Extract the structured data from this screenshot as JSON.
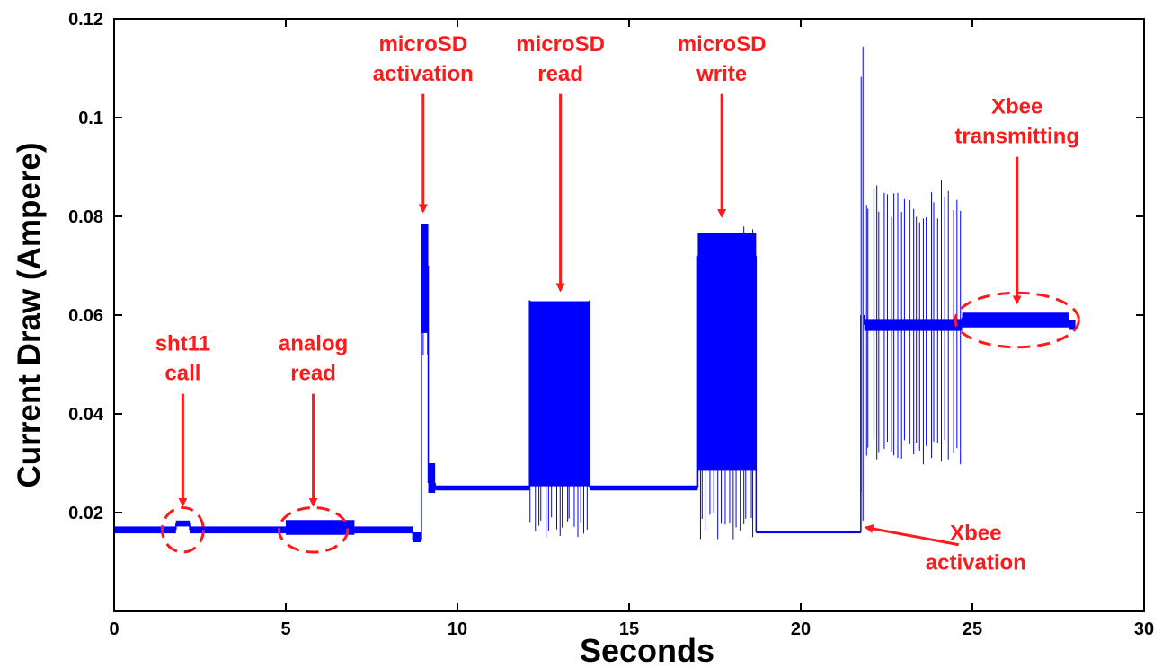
{
  "chart_data": {
    "type": "line",
    "title": "",
    "xlabel": "Seconds",
    "ylabel": "Current Draw (Ampere)",
    "xlim": [
      0,
      30
    ],
    "ylim": [
      0,
      0.12
    ],
    "xticks": [
      0,
      5,
      10,
      15,
      20,
      25,
      30
    ],
    "xtick_labels": [
      "0",
      "5",
      "10",
      "15",
      "20",
      "25",
      "30"
    ],
    "yticks": [
      0.02,
      0.04,
      0.06,
      0.08,
      0.1,
      0.12
    ],
    "ytick_labels": [
      "0.02",
      "0.04",
      "0.06",
      "0.08",
      "0.1",
      "0.12"
    ],
    "grid": false,
    "line_color": "#0000ff",
    "annotation_color": "#ff1a1a",
    "series": [
      {
        "segments": [
          {
            "x0": 0.0,
            "x1": 1.8,
            "base": 0.0165,
            "range": [
              0.0158,
              0.0172
            ]
          },
          {
            "x0": 1.8,
            "x1": 2.2,
            "base": 0.0178,
            "range": [
              0.0172,
              0.0184
            ]
          },
          {
            "x0": 2.2,
            "x1": 5.0,
            "base": 0.0165,
            "range": [
              0.0158,
              0.0172
            ]
          },
          {
            "x0": 5.0,
            "x1": 7.0,
            "base": 0.0168,
            "range": [
              0.0155,
              0.0185
            ]
          },
          {
            "x0": 7.0,
            "x1": 8.7,
            "base": 0.0165,
            "range": [
              0.0158,
              0.0172
            ]
          },
          {
            "x0": 8.7,
            "x1": 8.95,
            "base": 0.0145,
            "range": [
              0.014,
              0.016
            ]
          },
          {
            "x0": 8.95,
            "x1": 9.15,
            "base": 0.07,
            "range": [
              0.05,
              0.079
            ]
          },
          {
            "x0": 9.15,
            "x1": 9.35,
            "base": 0.026,
            "range": [
              0.024,
              0.03
            ]
          },
          {
            "x0": 9.35,
            "x1": 12.1,
            "base": 0.025,
            "range": [
              0.0245,
              0.0255
            ]
          },
          {
            "x0": 12.1,
            "x1": 13.85,
            "base": 0.063,
            "range": [
              0.0145,
              0.0638
            ]
          },
          {
            "x0": 13.85,
            "x1": 17.0,
            "base": 0.025,
            "range": [
              0.0245,
              0.0255
            ]
          },
          {
            "x0": 17.0,
            "x1": 18.7,
            "base": 0.072,
            "range": [
              0.0145,
              0.078
            ]
          },
          {
            "x0": 18.7,
            "x1": 21.75,
            "base": 0.016,
            "range": [
              0.0158,
              0.0162
            ]
          },
          {
            "x0": 21.75,
            "x1": 21.85,
            "base": 0.06,
            "range": [
              0.016,
              0.1165
            ]
          },
          {
            "x0": 21.85,
            "x1": 24.7,
            "base": 0.058,
            "range": [
              0.029,
              0.0875
            ]
          },
          {
            "x0": 24.7,
            "x1": 27.8,
            "base": 0.0595,
            "range": [
              0.0575,
              0.0605
            ]
          },
          {
            "x0": 27.8,
            "x1": 28.0,
            "base": 0.058,
            "range": [
              0.057,
              0.059
            ]
          }
        ]
      }
    ],
    "annotations": [
      {
        "lines": [
          "sht11",
          "call"
        ],
        "arrow_tip": [
          2.0,
          0.0215
        ],
        "ellipse": {
          "cx": 2.0,
          "cy": 0.0165,
          "rx": 0.6,
          "ry": 0.0045
        }
      },
      {
        "lines": [
          "analog",
          "read"
        ],
        "arrow_tip": [
          5.8,
          0.0215
        ],
        "ellipse": {
          "cx": 5.8,
          "cy": 0.0165,
          "rx": 1.0,
          "ry": 0.0045
        }
      },
      {
        "lines": [
          "microSD",
          "activation"
        ],
        "arrow_tip": [
          9.0,
          0.081
        ]
      },
      {
        "lines": [
          "microSD",
          "read"
        ],
        "arrow_tip": [
          13.0,
          0.065
        ]
      },
      {
        "lines": [
          "microSD",
          "write"
        ],
        "arrow_tip": [
          17.7,
          0.08
        ]
      },
      {
        "lines": [
          "Xbee",
          "transmitting"
        ],
        "arrow_tip": [
          26.3,
          0.0625
        ],
        "ellipse": {
          "cx": 26.3,
          "cy": 0.059,
          "rx": 1.8,
          "ry": 0.0055
        }
      },
      {
        "lines": [
          "Xbee",
          "activation"
        ],
        "arrow_tip": [
          21.9,
          0.017
        ]
      }
    ]
  }
}
